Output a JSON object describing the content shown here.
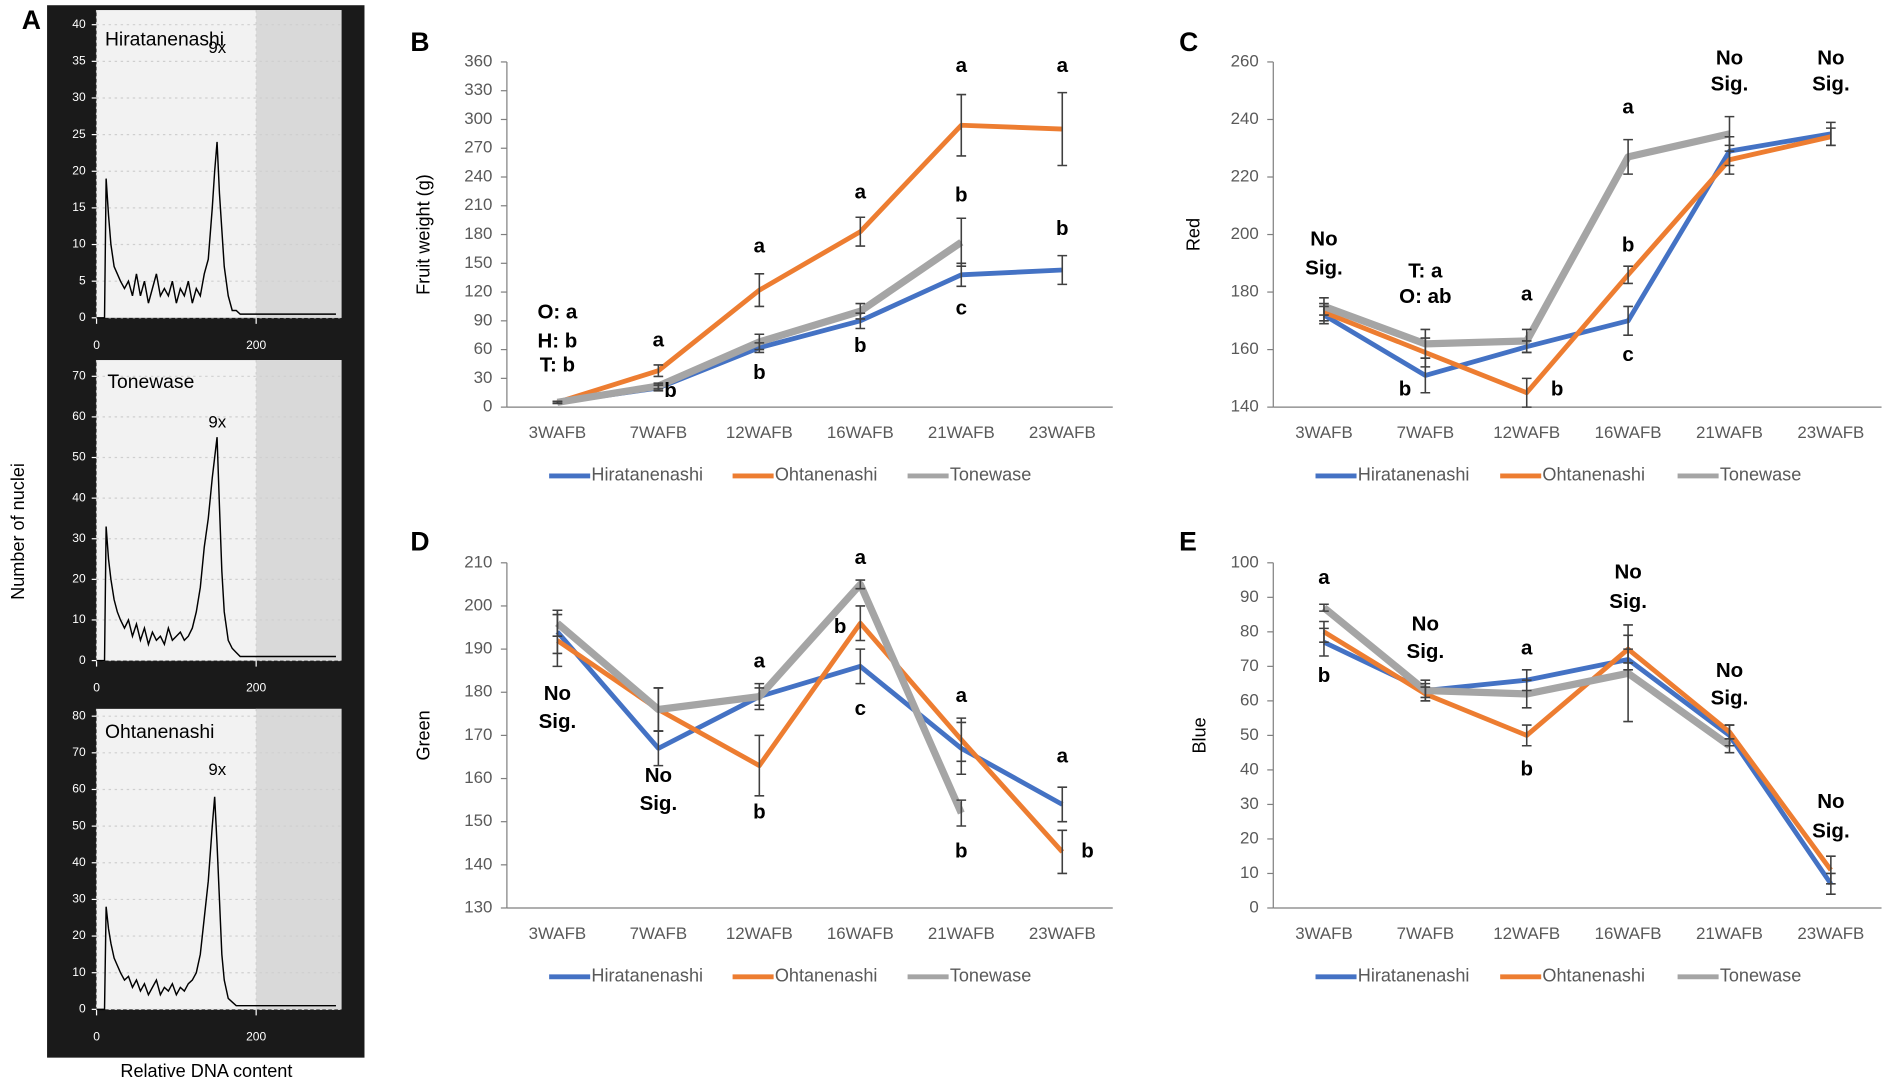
{
  "figure": {
    "panel_labels": [
      "A",
      "B",
      "C",
      "D",
      "E"
    ],
    "a_ylabel": "Number of nuclei",
    "a_xlabel": "Relative DNA content"
  },
  "chart_data": [
    {
      "type": "line",
      "title": "Hiratanenashi",
      "annotations": [
        "9x"
      ],
      "color": "#000000",
      "grid": true,
      "x": [
        0,
        10,
        12,
        15,
        18,
        22,
        26,
        30,
        35,
        40,
        45,
        50,
        55,
        60,
        65,
        70,
        75,
        80,
        85,
        90,
        95,
        100,
        105,
        110,
        115,
        120,
        125,
        130,
        135,
        140,
        145,
        148,
        151,
        154,
        157,
        160,
        165,
        170,
        175,
        180,
        190,
        200,
        220,
        240,
        260,
        280,
        300
      ],
      "values": [
        0,
        0,
        19,
        14,
        10,
        7,
        6,
        5,
        4,
        5,
        3,
        6,
        3,
        5,
        2,
        4,
        6,
        3,
        4,
        3,
        5,
        2,
        4,
        3,
        5,
        2,
        4,
        3,
        6,
        8,
        15,
        20,
        24,
        17,
        12,
        7,
        3,
        1,
        1,
        0.5,
        0.5,
        0.5,
        0.5,
        0.5,
        0.5,
        0.5,
        0.5
      ],
      "xlim": [
        0,
        307
      ],
      "xticks": [
        0,
        200
      ],
      "ylim": [
        0,
        42
      ],
      "yticks": [
        0,
        5,
        10,
        15,
        20,
        25,
        30,
        35,
        40
      ]
    },
    {
      "type": "line",
      "title": "Tonewase",
      "annotations": [
        "9x"
      ],
      "color": "#000000",
      "grid": true,
      "x": [
        0,
        10,
        12,
        15,
        18,
        22,
        26,
        30,
        35,
        40,
        45,
        50,
        55,
        60,
        65,
        70,
        75,
        80,
        85,
        90,
        95,
        100,
        105,
        110,
        115,
        120,
        125,
        130,
        135,
        140,
        145,
        148,
        151,
        154,
        157,
        160,
        165,
        170,
        175,
        180,
        190,
        200,
        220,
        240,
        260,
        280,
        300
      ],
      "values": [
        0,
        0,
        33,
        25,
        20,
        15,
        12,
        10,
        8,
        10,
        6,
        9,
        5,
        8,
        4,
        7,
        5,
        6,
        4,
        8,
        5,
        6,
        7,
        5,
        6,
        8,
        12,
        18,
        28,
        35,
        45,
        50,
        55,
        38,
        22,
        12,
        5,
        3,
        2,
        1,
        1,
        1,
        1,
        1,
        1,
        1,
        1
      ],
      "xlim": [
        0,
        307
      ],
      "xticks": [
        0,
        200
      ],
      "ylim": [
        0,
        74
      ],
      "yticks": [
        0,
        10,
        20,
        30,
        40,
        50,
        60,
        70
      ]
    },
    {
      "type": "line",
      "title": "Ohtanenashi",
      "annotations": [
        "9x"
      ],
      "color": "#000000",
      "grid": true,
      "x": [
        0,
        10,
        12,
        15,
        18,
        22,
        26,
        30,
        35,
        40,
        45,
        50,
        55,
        60,
        65,
        70,
        75,
        80,
        85,
        90,
        95,
        100,
        105,
        110,
        115,
        120,
        125,
        130,
        135,
        140,
        145,
        148,
        151,
        154,
        157,
        160,
        165,
        170,
        175,
        180,
        190,
        200,
        220,
        240,
        260,
        280,
        300
      ],
      "values": [
        0,
        0,
        28,
        22,
        18,
        14,
        12,
        10,
        8,
        9,
        6,
        8,
        5,
        7,
        4,
        6,
        8,
        4,
        6,
        5,
        7,
        4,
        6,
        5,
        7,
        8,
        10,
        15,
        25,
        35,
        50,
        58,
        45,
        30,
        15,
        8,
        3,
        2,
        1,
        1,
        1,
        1,
        1,
        1,
        1,
        1,
        1
      ],
      "xlim": [
        0,
        307
      ],
      "xticks": [
        0,
        200
      ],
      "ylim": [
        0,
        82
      ],
      "yticks": [
        0,
        10,
        20,
        30,
        40,
        50,
        60,
        70,
        80
      ]
    },
    {
      "type": "line",
      "ylabel": "Fruit weight (g)",
      "legend": "bottom",
      "categories": [
        "3WAFB",
        "7WAFB",
        "12WAFB",
        "16WAFB",
        "21WAFB",
        "23WAFB"
      ],
      "series": [
        {
          "name": "Hiratanenashi",
          "color": "#4472c4",
          "values": [
            5,
            20,
            62,
            90,
            138,
            143
          ],
          "errors": [
            1,
            3,
            5,
            8,
            12,
            15
          ]
        },
        {
          "name": "Ohtanenashi",
          "color": "#ed7d31",
          "values": [
            5,
            38,
            122,
            183,
            294,
            290
          ],
          "errors": [
            1,
            6,
            17,
            15,
            32,
            38
          ]
        },
        {
          "name": "Tonewase",
          "color": "#a5a5a5",
          "values": [
            5,
            22,
            68,
            100,
            172,
            null
          ],
          "errors": [
            1,
            3,
            8,
            8,
            25,
            null
          ]
        }
      ],
      "ylim": [
        0,
        360
      ],
      "yticks": [
        0,
        30,
        60,
        90,
        120,
        150,
        180,
        210,
        240,
        270,
        300,
        330,
        360
      ],
      "annotations": [
        "O: a",
        "H: b",
        "T: b",
        "a",
        "b",
        "a",
        "b",
        "a",
        "b",
        "a",
        "b",
        "c",
        "a",
        "b"
      ]
    },
    {
      "type": "line",
      "ylabel": "Red",
      "legend": "bottom",
      "categories": [
        "3WAFB",
        "7WAFB",
        "12WAFB",
        "16WAFB",
        "21WAFB",
        "23WAFB"
      ],
      "series": [
        {
          "name": "Hiratanenashi",
          "color": "#4472c4",
          "values": [
            172,
            151,
            161,
            170,
            229,
            235
          ],
          "errors": [
            3,
            6,
            2,
            5,
            5,
            4
          ]
        },
        {
          "name": "Ohtanenashi",
          "color": "#ed7d31",
          "values": [
            173,
            159,
            145,
            186,
            226,
            234
          ],
          "errors": [
            3,
            5,
            5,
            3,
            5,
            3
          ]
        },
        {
          "name": "Tonewase",
          "color": "#a5a5a5",
          "values": [
            175,
            162,
            163,
            227,
            235,
            null
          ],
          "errors": [
            3,
            5,
            4,
            6,
            6,
            null
          ]
        }
      ],
      "ylim": [
        140,
        260
      ],
      "yticks": [
        140,
        160,
        180,
        200,
        220,
        240,
        260
      ],
      "annotations": [
        "No",
        "Sig.",
        "T: a",
        "O: ab",
        "b",
        "a",
        "b",
        "a",
        "b",
        "c",
        "No",
        "Sig.",
        "No",
        "Sig."
      ]
    },
    {
      "type": "line",
      "ylabel": "Green",
      "legend": "bottom",
      "categories": [
        "3WAFB",
        "7WAFB",
        "12WAFB",
        "16WAFB",
        "21WAFB",
        "23WAFB"
      ],
      "series": [
        {
          "name": "Hiratanenashi",
          "color": "#4472c4",
          "values": [
            194,
            167,
            179,
            186,
            167,
            154
          ],
          "errors": [
            5,
            4,
            2,
            4,
            6,
            4
          ]
        },
        {
          "name": "Ohtanenashi",
          "color": "#ed7d31",
          "values": [
            192,
            176,
            163,
            196,
            169,
            143
          ],
          "errors": [
            6,
            5,
            7,
            4,
            5,
            5
          ]
        },
        {
          "name": "Tonewase",
          "color": "#a5a5a5",
          "values": [
            196,
            176,
            179,
            205,
            152,
            null
          ],
          "errors": [
            3,
            5,
            3,
            1,
            3,
            null
          ]
        }
      ],
      "ylim": [
        130,
        210
      ],
      "yticks": [
        130,
        140,
        150,
        160,
        170,
        180,
        190,
        200,
        210
      ],
      "annotations": [
        "No",
        "Sig.",
        "No",
        "Sig.",
        "a",
        "b",
        "a",
        "b",
        "c",
        "a",
        "b",
        "a",
        "b"
      ]
    },
    {
      "type": "line",
      "ylabel": "Blue",
      "legend": "bottom",
      "categories": [
        "3WAFB",
        "7WAFB",
        "12WAFB",
        "16WAFB",
        "21WAFB",
        "23WAFB"
      ],
      "series": [
        {
          "name": "Hiratanenashi",
          "color": "#4472c4",
          "values": [
            77,
            63,
            66,
            72,
            50,
            7
          ],
          "errors": [
            4,
            2,
            3,
            3,
            3,
            3
          ]
        },
        {
          "name": "Ohtanenashi",
          "color": "#ed7d31",
          "values": [
            80,
            62,
            50,
            75,
            51,
            11
          ],
          "errors": [
            3,
            2,
            3,
            4,
            2,
            4
          ]
        },
        {
          "name": "Tonewase",
          "color": "#a5a5a5",
          "values": [
            87,
            63,
            62,
            68,
            47,
            null
          ],
          "errors": [
            1,
            3,
            4,
            14,
            2,
            null
          ]
        }
      ],
      "ylim": [
        0,
        100
      ],
      "yticks": [
        0,
        10,
        20,
        30,
        40,
        50,
        60,
        70,
        80,
        90,
        100
      ],
      "annotations": [
        "a",
        "b",
        "No",
        "Sig.",
        "a",
        "b",
        "No",
        "Sig.",
        "No",
        "Sig.",
        "No",
        "Sig."
      ]
    }
  ]
}
